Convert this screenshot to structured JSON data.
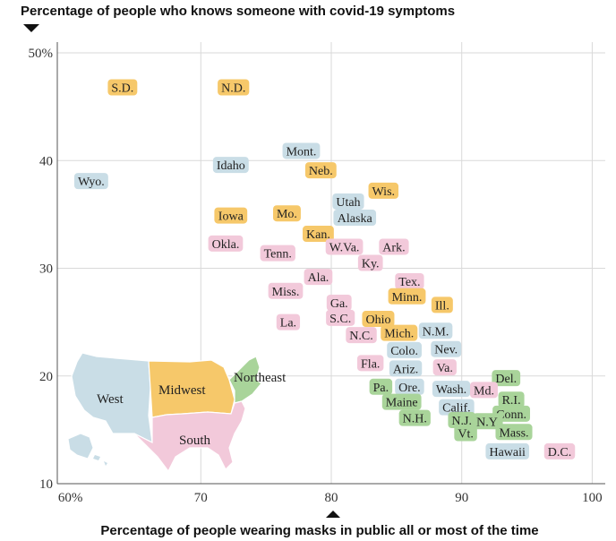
{
  "chart_data": {
    "type": "scatter",
    "title": "Percentage of people who knows someone with covid-19 symptoms",
    "xlabel": "Percentage of people wearing masks in public all or most of the time",
    "xlim": [
      59,
      101
    ],
    "ylim": [
      10,
      51
    ],
    "xticks": [
      {
        "value": 60,
        "label": "60%"
      },
      {
        "value": 70,
        "label": "70"
      },
      {
        "value": 80,
        "label": "80"
      },
      {
        "value": 90,
        "label": "90"
      },
      {
        "value": 100,
        "label": "100"
      }
    ],
    "yticks": [
      {
        "value": 10,
        "label": "10"
      },
      {
        "value": 20,
        "label": "20"
      },
      {
        "value": 30,
        "label": "30"
      },
      {
        "value": 40,
        "label": "40"
      },
      {
        "value": 50,
        "label": "50%"
      }
    ],
    "region_colors": {
      "Midwest": "#f6c86a",
      "West": "#c9dde6",
      "South": "#f2c9da",
      "Northeast": "#a9d49a"
    },
    "legend": {
      "placement": "bottom-left",
      "type": "map",
      "regions": [
        "West",
        "Midwest",
        "Northeast",
        "South"
      ]
    },
    "points": [
      {
        "label": "S.D.",
        "region": "Midwest",
        "x": 64.0,
        "y": 46.8
      },
      {
        "label": "N.D.",
        "region": "Midwest",
        "x": 72.5,
        "y": 46.8
      },
      {
        "label": "Mont.",
        "region": "West",
        "x": 77.7,
        "y": 40.9
      },
      {
        "label": "Idaho",
        "region": "West",
        "x": 72.3,
        "y": 39.6
      },
      {
        "label": "Neb.",
        "region": "Midwest",
        "x": 79.2,
        "y": 39.1
      },
      {
        "label": "Wyo.",
        "region": "West",
        "x": 61.6,
        "y": 38.1
      },
      {
        "label": "Wis.",
        "region": "Midwest",
        "x": 84.0,
        "y": 37.2
      },
      {
        "label": "Utah",
        "region": "West",
        "x": 81.3,
        "y": 36.2
      },
      {
        "label": "Iowa",
        "region": "Midwest",
        "x": 72.3,
        "y": 34.9
      },
      {
        "label": "Mo.",
        "region": "Midwest",
        "x": 76.6,
        "y": 35.1
      },
      {
        "label": "Alaska",
        "region": "West",
        "x": 81.8,
        "y": 34.7
      },
      {
        "label": "Kan.",
        "region": "Midwest",
        "x": 79.0,
        "y": 33.2
      },
      {
        "label": "Okla.",
        "region": "South",
        "x": 71.9,
        "y": 32.3
      },
      {
        "label": "W.Va.",
        "region": "South",
        "x": 81.0,
        "y": 32.0
      },
      {
        "label": "Ark.",
        "region": "South",
        "x": 84.8,
        "y": 32.0
      },
      {
        "label": "Tenn.",
        "region": "South",
        "x": 75.9,
        "y": 31.4
      },
      {
        "label": "Ky.",
        "region": "South",
        "x": 83.0,
        "y": 30.5
      },
      {
        "label": "Ala.",
        "region": "South",
        "x": 79.0,
        "y": 29.2
      },
      {
        "label": "Tex.",
        "region": "South",
        "x": 86.0,
        "y": 28.8
      },
      {
        "label": "Miss.",
        "region": "South",
        "x": 76.5,
        "y": 27.9
      },
      {
        "label": "Minn.",
        "region": "Midwest",
        "x": 85.8,
        "y": 27.4
      },
      {
        "label": "Ga.",
        "region": "South",
        "x": 80.6,
        "y": 26.8
      },
      {
        "label": "Ill.",
        "region": "Midwest",
        "x": 88.5,
        "y": 26.6
      },
      {
        "label": "S.C.",
        "region": "South",
        "x": 80.7,
        "y": 25.4
      },
      {
        "label": "Ohio",
        "region": "Midwest",
        "x": 83.6,
        "y": 25.3
      },
      {
        "label": "La.",
        "region": "South",
        "x": 76.7,
        "y": 25.0
      },
      {
        "label": "N.C.",
        "region": "South",
        "x": 82.3,
        "y": 23.8
      },
      {
        "label": "Mich.",
        "region": "Midwest",
        "x": 85.2,
        "y": 24.0
      },
      {
        "label": "N.M.",
        "region": "West",
        "x": 88.0,
        "y": 24.2
      },
      {
        "label": "Colo.",
        "region": "West",
        "x": 85.6,
        "y": 22.4
      },
      {
        "label": "Nev.",
        "region": "West",
        "x": 88.8,
        "y": 22.5
      },
      {
        "label": "Fla.",
        "region": "South",
        "x": 83.0,
        "y": 21.2
      },
      {
        "label": "Ariz.",
        "region": "West",
        "x": 85.7,
        "y": 20.7
      },
      {
        "label": "Va.",
        "region": "South",
        "x": 88.7,
        "y": 20.8
      },
      {
        "label": "Del.",
        "region": "Northeast",
        "x": 93.4,
        "y": 19.8
      },
      {
        "label": "Pa.",
        "region": "Northeast",
        "x": 83.8,
        "y": 19.0
      },
      {
        "label": "Ore.",
        "region": "West",
        "x": 86.0,
        "y": 19.0
      },
      {
        "label": "Wash.",
        "region": "West",
        "x": 89.2,
        "y": 18.8
      },
      {
        "label": "Md.",
        "region": "South",
        "x": 91.7,
        "y": 18.7
      },
      {
        "label": "R.I.",
        "region": "Northeast",
        "x": 93.8,
        "y": 17.8
      },
      {
        "label": "Maine",
        "region": "Northeast",
        "x": 85.4,
        "y": 17.6
      },
      {
        "label": "Calif.",
        "region": "West",
        "x": 89.6,
        "y": 17.1
      },
      {
        "label": "Conn.",
        "region": "Northeast",
        "x": 93.8,
        "y": 16.5
      },
      {
        "label": "N.H.",
        "region": "Northeast",
        "x": 86.4,
        "y": 16.1
      },
      {
        "label": "N.J.",
        "region": "Northeast",
        "x": 90.0,
        "y": 15.9
      },
      {
        "label": "N.Y.",
        "region": "Northeast",
        "x": 92.0,
        "y": 15.8
      },
      {
        "label": "Vt.",
        "region": "Northeast",
        "x": 90.3,
        "y": 14.7
      },
      {
        "label": "Mass.",
        "region": "Northeast",
        "x": 94.0,
        "y": 14.8
      },
      {
        "label": "Hawaii",
        "region": "West",
        "x": 93.5,
        "y": 13.0
      },
      {
        "label": "D.C.",
        "region": "South",
        "x": 97.5,
        "y": 13.0
      }
    ]
  }
}
